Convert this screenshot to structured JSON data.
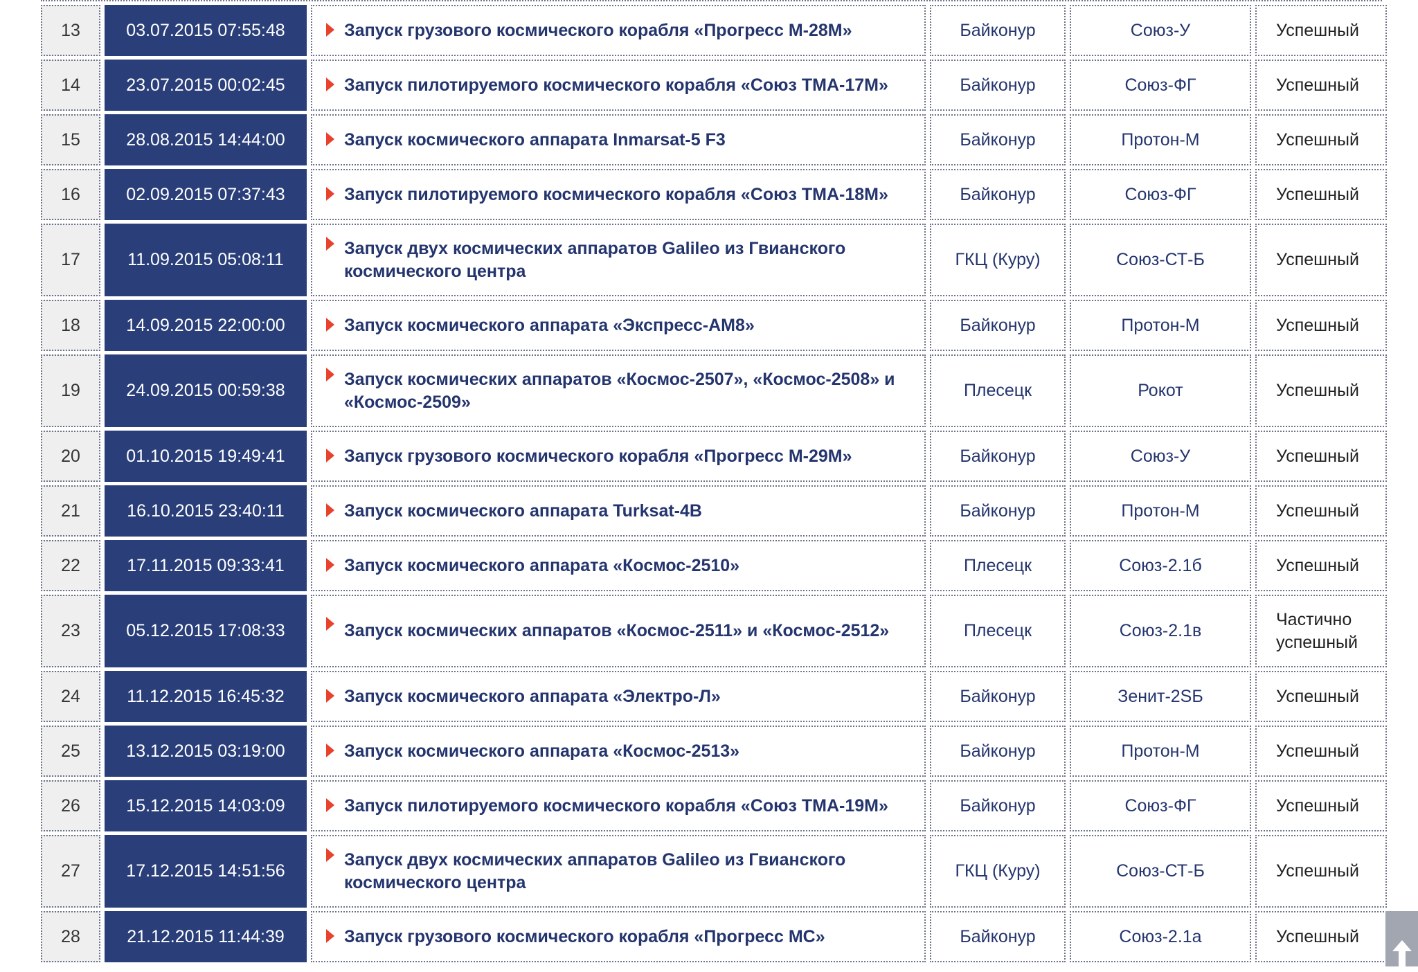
{
  "colors": {
    "date_bg": "#2a3f7a",
    "link": "#24356e",
    "bullet": "#e8412c",
    "num_bg": "#efefef",
    "scroll_button": "#a2a6b0"
  },
  "rows": [
    {
      "n": "13",
      "date": "03.07.2015 07:55:48",
      "title": "Запуск грузового космического корабля «Прогресс М-28М»",
      "site": "Байконур",
      "rocket": "Союз-У",
      "status": "Успешный"
    },
    {
      "n": "14",
      "date": "23.07.2015 00:02:45",
      "title": "Запуск пилотируемого космического корабля «Союз ТМА-17М»",
      "site": "Байконур",
      "rocket": "Союз-ФГ",
      "status": "Успешный"
    },
    {
      "n": "15",
      "date": "28.08.2015 14:44:00",
      "title": "Запуск космического аппарата Inmarsat-5 F3",
      "site": "Байконур",
      "rocket": "Протон-М",
      "status": "Успешный"
    },
    {
      "n": "16",
      "date": "02.09.2015 07:37:43",
      "title": "Запуск пилотируемого космического корабля «Союз ТМА-18М»",
      "site": "Байконур",
      "rocket": "Союз-ФГ",
      "status": "Успешный"
    },
    {
      "n": "17",
      "date": "11.09.2015 05:08:11",
      "title": "Запуск двух космических аппаратов Galileo из Гвианского космического центра",
      "site": "ГКЦ (Куру)",
      "rocket": "Союз-СТ-Б",
      "status": "Успешный",
      "double": true
    },
    {
      "n": "18",
      "date": "14.09.2015 22:00:00",
      "title": "Запуск космического аппарата «Экспресс-АМ8»",
      "site": "Байконур",
      "rocket": "Протон-М",
      "status": "Успешный"
    },
    {
      "n": "19",
      "date": "24.09.2015 00:59:38",
      "title": "Запуск космических аппаратов «Космос-2507», «Космос-2508» и «Космос-2509»",
      "site": "Плесецк",
      "rocket": "Рокот",
      "status": "Успешный",
      "double": true
    },
    {
      "n": "20",
      "date": "01.10.2015 19:49:41",
      "title": "Запуск грузового космического корабля «Прогресс М-29М»",
      "site": "Байконур",
      "rocket": "Союз-У",
      "status": "Успешный"
    },
    {
      "n": "21",
      "date": "16.10.2015 23:40:11",
      "title": "Запуск космического аппарата Turksat-4B",
      "site": "Байконур",
      "rocket": "Протон-М",
      "status": "Успешный"
    },
    {
      "n": "22",
      "date": "17.11.2015 09:33:41",
      "title": "Запуск космического аппарата «Космос-2510»",
      "site": "Плесецк",
      "rocket": "Союз-2.1б",
      "status": "Успешный"
    },
    {
      "n": "23",
      "date": "05.12.2015 17:08:33",
      "title": "Запуск космических аппаратов «Космос-2511» и «Космос-2512»",
      "site": "Плесецк",
      "rocket": "Союз-2.1в",
      "status": "Частично успешный",
      "double": true
    },
    {
      "n": "24",
      "date": "11.12.2015 16:45:32",
      "title": "Запуск космического аппарата «Электро-Л»",
      "site": "Байконур",
      "rocket": "Зенит-2SБ",
      "status": "Успешный"
    },
    {
      "n": "25",
      "date": "13.12.2015 03:19:00",
      "title": "Запуск космического аппарата «Космос-2513»",
      "site": "Байконур",
      "rocket": "Протон-М",
      "status": "Успешный"
    },
    {
      "n": "26",
      "date": "15.12.2015 14:03:09",
      "title": "Запуск пилотируемого космического корабля «Союз ТМА-19М»",
      "site": "Байконур",
      "rocket": "Союз-ФГ",
      "status": "Успешный"
    },
    {
      "n": "27",
      "date": "17.12.2015 14:51:56",
      "title": "Запуск двух космических аппаратов Galileo из Гвианского космического центра",
      "site": "ГКЦ (Куру)",
      "rocket": "Союз-СТ-Б",
      "status": "Успешный",
      "double": true
    },
    {
      "n": "28",
      "date": "21.12.2015 11:44:39",
      "title": "Запуск грузового космического корабля «Прогресс МС»",
      "site": "Байконур",
      "rocket": "Союз-2.1а",
      "status": "Успешный"
    }
  ],
  "scroll_top": {
    "icon": "arrow-up-icon"
  }
}
